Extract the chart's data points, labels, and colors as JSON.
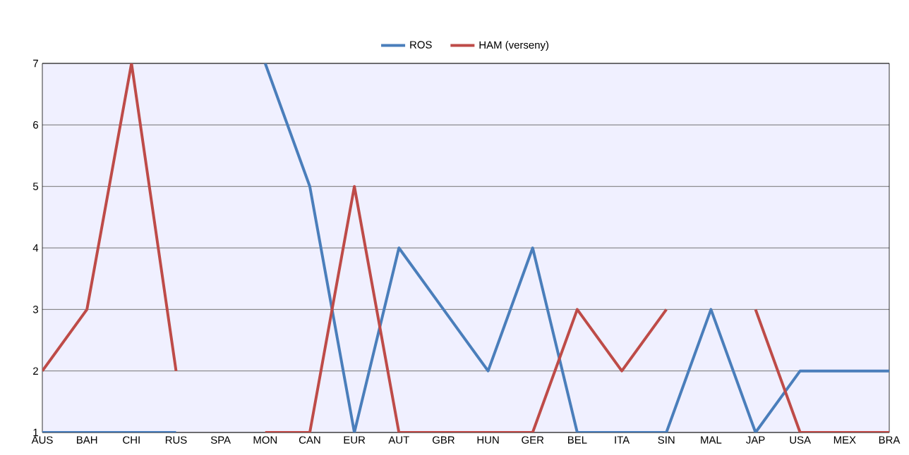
{
  "chart_data": {
    "type": "line",
    "categories": [
      "AUS",
      "BAH",
      "CHI",
      "RUS",
      "SPA",
      "MON",
      "CAN",
      "EUR",
      "AUT",
      "GBR",
      "HUN",
      "GER",
      "BEL",
      "ITA",
      "SIN",
      "MAL",
      "JAP",
      "USA",
      "MEX",
      "BRA"
    ],
    "series": [
      {
        "name": "ROS",
        "color": "#4a7ebb",
        "values": [
          1,
          1,
          1,
          1,
          null,
          7,
          5,
          1,
          4,
          3,
          2,
          4,
          1,
          1,
          1,
          3,
          1,
          2,
          2,
          2
        ]
      },
      {
        "name": "HAM (verseny)",
        "color": "#be4b48",
        "values": [
          2,
          3,
          7,
          2,
          null,
          1,
          1,
          5,
          1,
          1,
          1,
          1,
          3,
          2,
          3,
          null,
          3,
          1,
          1,
          1
        ]
      }
    ],
    "ylim": [
      1,
      7
    ],
    "yticks": [
      1,
      2,
      3,
      4,
      5,
      6,
      7
    ],
    "grid": "y",
    "legend": "top",
    "marker": "none",
    "line_style": "solid"
  }
}
